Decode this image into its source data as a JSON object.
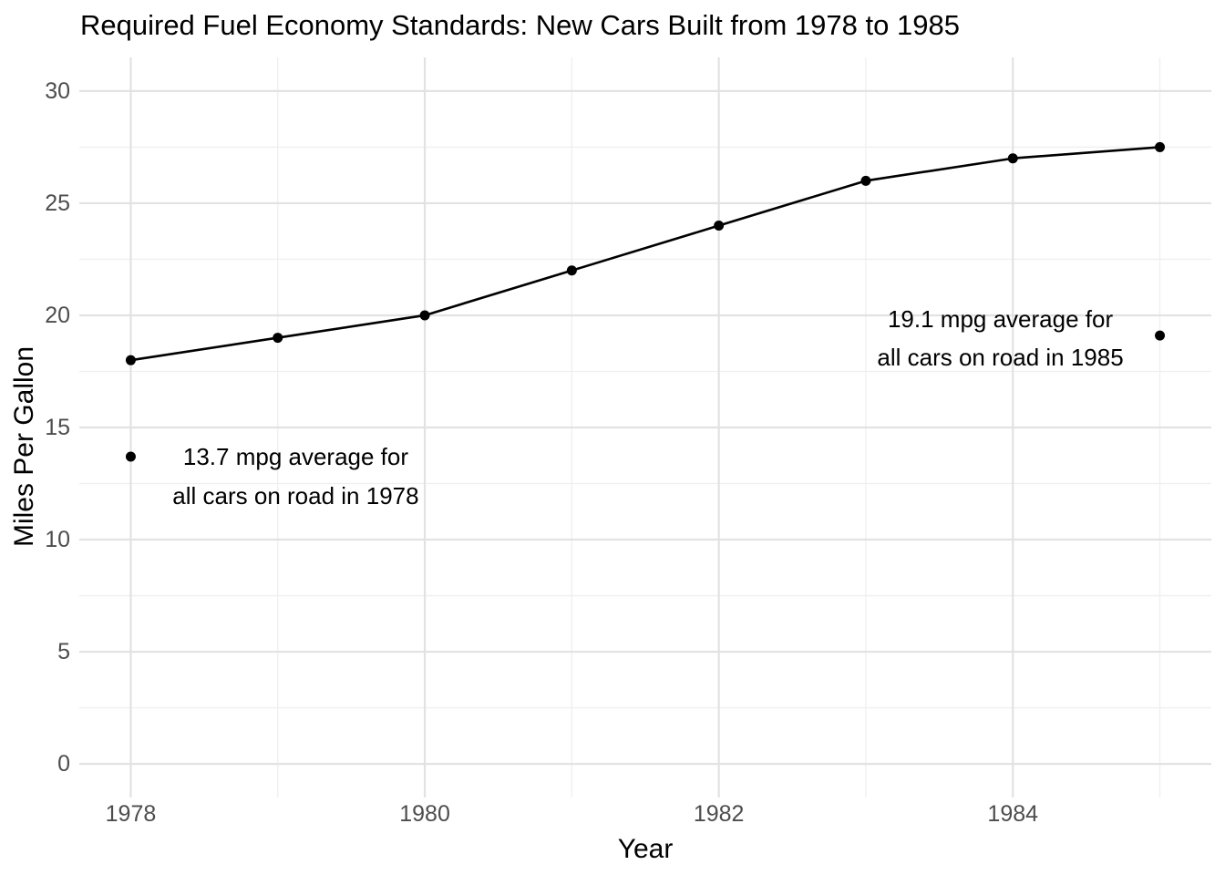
{
  "chart_data": {
    "type": "line",
    "title": "Required Fuel Economy Standards: New Cars Built from 1978 to 1985",
    "xlabel": "Year",
    "ylabel": "Miles Per Gallon",
    "x": [
      1978,
      1979,
      1980,
      1981,
      1982,
      1983,
      1984,
      1985
    ],
    "values": [
      18,
      19,
      20,
      22,
      24,
      26,
      27,
      27.5
    ],
    "xlim": [
      1977.65,
      1985.35
    ],
    "ylim": [
      -1.5,
      31.5
    ],
    "x_major_ticks": [
      1978,
      1980,
      1982,
      1984
    ],
    "x_minor_gridlines": [
      1979,
      1981,
      1983,
      1985
    ],
    "y_major_ticks": [
      0,
      5,
      10,
      15,
      20,
      25,
      30
    ],
    "y_minor_gridlines": [
      2.5,
      7.5,
      12.5,
      17.5,
      22.5,
      27.5
    ],
    "grid": "major+minor",
    "legend": "none",
    "annotations": [
      {
        "x": 1978,
        "y": 13.7,
        "lines": [
          "13.7 mpg average for",
          "all cars on road in 1978"
        ]
      },
      {
        "x": 1985,
        "y": 19.1,
        "lines": [
          "19.1 mpg average for",
          "all cars on road in 1985"
        ]
      }
    ],
    "colors": {
      "background": "#ffffff",
      "line": "#000000",
      "point": "#000000",
      "title": "#000000",
      "axis_title": "#000000",
      "tick_label": "#4d4d4d",
      "grid_major": "#e2e2e2",
      "grid_minor": "#efefef",
      "annotation_text": "#000000"
    }
  }
}
